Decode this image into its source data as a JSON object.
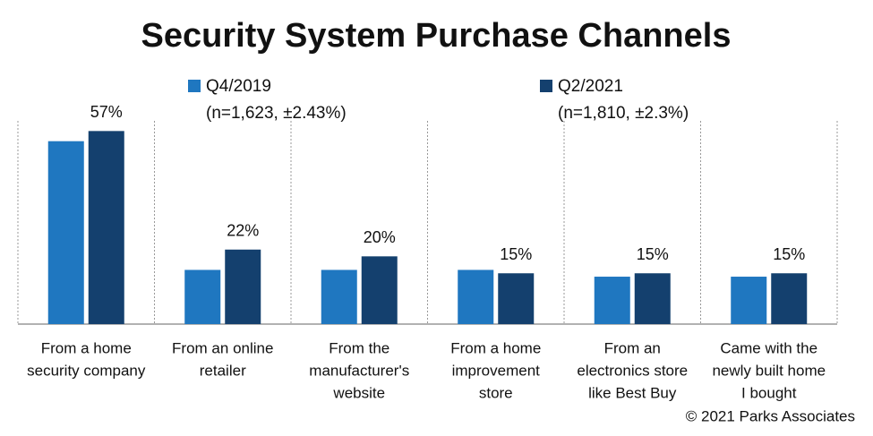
{
  "chart_data": {
    "type": "bar",
    "title": "Security System Purchase Channels",
    "categories": [
      [
        "From a home",
        "security company"
      ],
      [
        "From an online",
        "retailer"
      ],
      [
        "From the",
        "manufacturer's",
        "website"
      ],
      [
        "From a home",
        "improvement",
        "store"
      ],
      [
        "From an",
        "electronics store",
        "like Best Buy"
      ],
      [
        "Came with the",
        "newly built home",
        "I bought"
      ]
    ],
    "series": [
      {
        "name": "Q4/2019",
        "sample": "(n=1,623, ±2.43%)",
        "color": "#1f77c0",
        "values": [
          54,
          16,
          16,
          16,
          14,
          14
        ]
      },
      {
        "name": "Q2/2021",
        "sample": "(n=1,810, ±2.3%)",
        "color": "#14406e",
        "values": [
          57,
          22,
          20,
          15,
          15,
          15
        ],
        "value_labels": [
          "57%",
          "22%",
          "20%",
          "15%",
          "15%",
          "15%"
        ]
      }
    ],
    "ylim": [
      0,
      60
    ],
    "source": "© 2021 Parks Associates"
  }
}
